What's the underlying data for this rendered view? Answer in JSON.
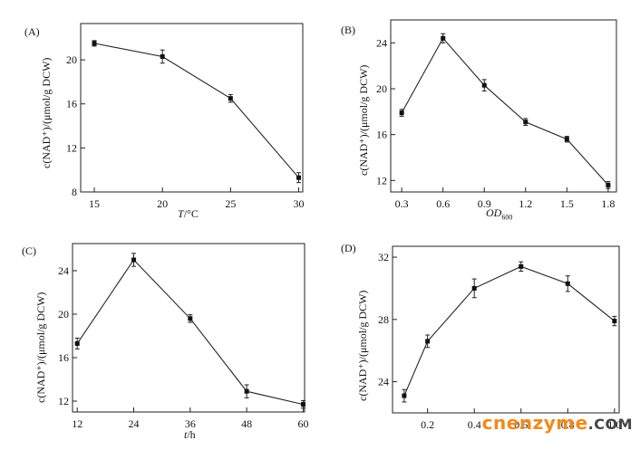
{
  "watermark": {
    "main": "cnenzyme",
    "tld": ".COM"
  },
  "chart_data": [
    {
      "type": "line",
      "panel_label": "(A)",
      "xlabel_italic": "T",
      "xlabel_rest": "/°C",
      "ylabel": "c(NAD⁺)/(μmol/g DCW)",
      "xlim": [
        14,
        30.3
      ],
      "ylim": [
        8,
        23.3
      ],
      "xticks": [
        15,
        20,
        25,
        30
      ],
      "xtick_labels": [
        "15",
        "20",
        "25",
        "30"
      ],
      "yticks": [
        8,
        12,
        16,
        20
      ],
      "series": [
        {
          "x": [
            15,
            20,
            25,
            30
          ],
          "y": [
            21.5,
            20.3,
            16.5,
            9.3
          ],
          "err": [
            0.25,
            0.6,
            0.35,
            0.45
          ]
        }
      ]
    },
    {
      "type": "line",
      "panel_label": "(B)",
      "xlabel_italic": "OD",
      "xlabel_sub": "600",
      "ylabel": "c(NAD⁺)/(μmol/g DCW)",
      "xlim": [
        0.22,
        1.86
      ],
      "ylim": [
        11,
        26
      ],
      "xticks": [
        0.3,
        0.6,
        0.9,
        1.2,
        1.5,
        1.8
      ],
      "xtick_labels": [
        "0.3",
        "0.6",
        "0.9",
        "1.2",
        "1.5",
        "1.8"
      ],
      "yticks": [
        12,
        16,
        20,
        24
      ],
      "series": [
        {
          "x": [
            0.3,
            0.6,
            0.9,
            1.2,
            1.5,
            1.8
          ],
          "y": [
            17.9,
            24.4,
            20.3,
            17.1,
            15.6,
            11.6
          ],
          "err": [
            0.3,
            0.4,
            0.5,
            0.3,
            0.25,
            0.3
          ]
        }
      ]
    },
    {
      "type": "line",
      "panel_label": "(C)",
      "xlabel_italic": "t",
      "xlabel_rest": "/h",
      "ylabel": "c(NAD⁺)/(μmol/g DCW)",
      "xlim": [
        11,
        60.3
      ],
      "ylim": [
        11,
        26.5
      ],
      "xticks": [
        12,
        24,
        36,
        48,
        60
      ],
      "xtick_labels": [
        "12",
        "24",
        "36",
        "48",
        "60"
      ],
      "yticks": [
        12,
        16,
        20,
        24
      ],
      "series": [
        {
          "x": [
            12,
            24,
            36,
            48,
            60
          ],
          "y": [
            17.3,
            25,
            19.6,
            12.9,
            11.7
          ],
          "err": [
            0.5,
            0.6,
            0.35,
            0.6,
            0.35
          ]
        }
      ]
    },
    {
      "type": "line",
      "panel_label": "(D)",
      "ylabel": "c(NAD⁺)/(μmol/g DCW)",
      "xlim": [
        0.05,
        1.02
      ],
      "ylim": [
        22,
        32.7
      ],
      "xticks": [
        0.2,
        0.4,
        0.6,
        0.8,
        1.0
      ],
      "xtick_labels": [
        "0.2",
        "0.4",
        "0.6",
        "0.8",
        "1.0"
      ],
      "yticks": [
        24,
        28,
        32
      ],
      "series": [
        {
          "x": [
            0.1,
            0.2,
            0.4,
            0.6,
            0.8,
            1.0
          ],
          "y": [
            23.1,
            26.6,
            30.0,
            31.4,
            30.3,
            27.9
          ],
          "err": [
            0.4,
            0.4,
            0.6,
            0.3,
            0.5,
            0.3
          ]
        }
      ]
    }
  ]
}
